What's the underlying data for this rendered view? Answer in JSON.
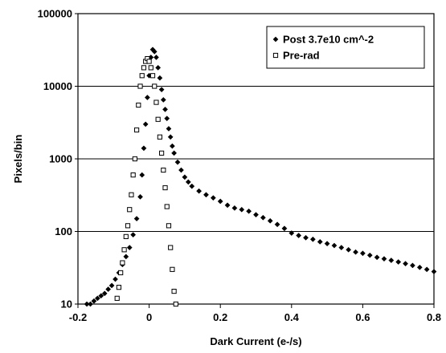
{
  "chart_data": {
    "type": "scatter",
    "xlabel": "Dark Current (e-/s)",
    "ylabel": "Pixels/bin",
    "xlim": [
      -0.2,
      0.8
    ],
    "ylim": [
      10,
      100000
    ],
    "yscale": "log",
    "x_ticks": [
      "-0.2",
      "0",
      "0.2",
      "0.4",
      "0.6",
      "0.8"
    ],
    "y_ticks": [
      "10",
      "100",
      "1000",
      "10000",
      "100000"
    ],
    "grid": "horizontal",
    "legend_position": "top-right",
    "series": [
      {
        "name": "Post 3.7e10 cm^-2",
        "marker": "filled-diamond",
        "color": "#000000",
        "x": [
          -0.175,
          -0.165,
          -0.155,
          -0.145,
          -0.135,
          -0.125,
          -0.115,
          -0.105,
          -0.095,
          -0.085,
          -0.075,
          -0.065,
          -0.055,
          -0.045,
          -0.035,
          -0.025,
          -0.02,
          -0.015,
          -0.01,
          -0.005,
          0.0,
          0.005,
          0.01,
          0.015,
          0.02,
          0.025,
          0.03,
          0.035,
          0.04,
          0.045,
          0.05,
          0.055,
          0.06,
          0.065,
          0.07,
          0.08,
          0.09,
          0.1,
          0.11,
          0.12,
          0.14,
          0.16,
          0.18,
          0.2,
          0.22,
          0.24,
          0.26,
          0.28,
          0.3,
          0.32,
          0.34,
          0.36,
          0.38,
          0.4,
          0.42,
          0.44,
          0.46,
          0.48,
          0.5,
          0.52,
          0.54,
          0.56,
          0.58,
          0.6,
          0.62,
          0.64,
          0.66,
          0.68,
          0.7,
          0.72,
          0.74,
          0.76,
          0.78,
          0.8
        ],
        "y": [
          10,
          10,
          11,
          12,
          13,
          14,
          16,
          18,
          22,
          27,
          35,
          45,
          60,
          90,
          150,
          300,
          600,
          1400,
          3000,
          7000,
          14000,
          25000,
          32000,
          30000,
          25000,
          18000,
          13000,
          9000,
          6500,
          4800,
          3600,
          2600,
          2000,
          1500,
          1200,
          900,
          700,
          560,
          480,
          420,
          360,
          320,
          290,
          260,
          230,
          210,
          200,
          190,
          170,
          155,
          140,
          125,
          110,
          95,
          88,
          82,
          78,
          72,
          68,
          64,
          60,
          56,
          52,
          50,
          47,
          44,
          42,
          40,
          38,
          36,
          34,
          32,
          30,
          28
        ]
      },
      {
        "name": "Pre-rad",
        "marker": "open-square",
        "color": "#000000",
        "x": [
          -0.09,
          -0.085,
          -0.08,
          -0.075,
          -0.07,
          -0.065,
          -0.06,
          -0.055,
          -0.05,
          -0.045,
          -0.04,
          -0.035,
          -0.03,
          -0.025,
          -0.02,
          -0.015,
          -0.01,
          -0.005,
          0.0,
          0.005,
          0.01,
          0.015,
          0.02,
          0.025,
          0.03,
          0.035,
          0.04,
          0.045,
          0.05,
          0.055,
          0.06,
          0.065,
          0.07,
          0.075
        ],
        "y": [
          12,
          17,
          27,
          37,
          56,
          85,
          120,
          200,
          320,
          600,
          1000,
          2500,
          5500,
          10000,
          14000,
          18000,
          22000,
          24000,
          22000,
          18000,
          14000,
          10000,
          6000,
          3500,
          2000,
          1200,
          700,
          400,
          220,
          120,
          60,
          30,
          15,
          10
        ]
      }
    ]
  }
}
